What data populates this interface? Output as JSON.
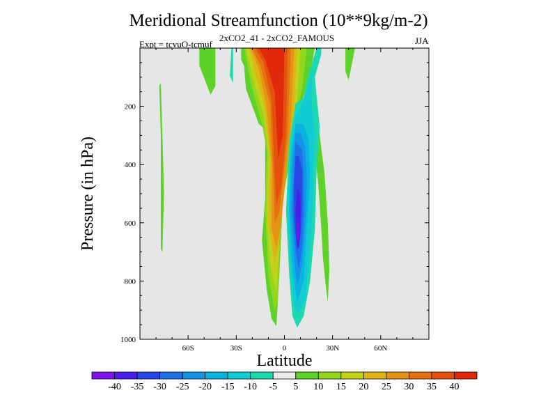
{
  "chart_data": {
    "type": "heatmap",
    "title": "Meridional Streamfunction (10**9kg/m-2)",
    "subtitle_left": "Expt = tcvuO-tcmuf",
    "subtitle_center": "2xCO2_41 - 2xCO2_FAMOUS",
    "subtitle_right": "JJA",
    "xlabel": "Latitude",
    "ylabel": "Pressure (in hPa)",
    "xlim": [
      -90,
      90
    ],
    "ylim": [
      1000,
      0
    ],
    "x_ticks": [
      {
        "value": -60,
        "label": "60S"
      },
      {
        "value": -30,
        "label": "30S"
      },
      {
        "value": 0,
        "label": "0"
      },
      {
        "value": 30,
        "label": "30N"
      },
      {
        "value": 60,
        "label": "60N"
      }
    ],
    "y_ticks": [
      200,
      400,
      600,
      800,
      1000
    ],
    "background_color": "#e6e6e6",
    "colorbar": {
      "placement": "bottom",
      "labels": [
        "-40",
        "-35",
        "-30",
        "-25",
        "-20",
        "-15",
        "-10",
        "-5",
        "5",
        "10",
        "15",
        "20",
        "25",
        "30",
        "35",
        "40"
      ],
      "colors": [
        "#7a14e8",
        "#4a1ee8",
        "#2848e6",
        "#1e70e6",
        "#1494e6",
        "#0ab4e0",
        "#12ccd4",
        "#1ed8b0",
        "#ececec",
        "#5ed228",
        "#92d61e",
        "#c2d21a",
        "#deb416",
        "#e49414",
        "#e47212",
        "#e4520e",
        "#e02a0a"
      ]
    },
    "regions": [
      {
        "level": 5,
        "points": [
          [
            -78,
            130
          ],
          [
            -77,
            300
          ],
          [
            -77,
            690
          ],
          [
            -76,
            700
          ],
          [
            -75,
            500
          ],
          [
            -76,
            300
          ],
          [
            -77,
            120
          ]
        ]
      },
      {
        "level": 5,
        "points": [
          [
            -53,
            0
          ],
          [
            -53,
            60
          ],
          [
            -46,
            160
          ],
          [
            -43,
            130
          ],
          [
            -43,
            0
          ]
        ]
      },
      {
        "level": -5,
        "points": [
          [
            -33,
            0
          ],
          [
            -34,
            95
          ],
          [
            -32,
            120
          ],
          [
            -32,
            0
          ]
        ]
      },
      {
        "level": 5,
        "points": [
          [
            -27,
            0
          ],
          [
            -27,
            40
          ],
          [
            -20,
            120
          ],
          [
            -18,
            60
          ],
          [
            -20,
            0
          ]
        ]
      },
      {
        "level": 5,
        "points": [
          [
            -26,
            0
          ],
          [
            -24,
            140
          ],
          [
            -16,
            260
          ],
          [
            -12,
            280
          ],
          [
            -12,
            520
          ],
          [
            -14,
            660
          ],
          [
            -11,
            830
          ],
          [
            -8,
            930
          ],
          [
            -5,
            955
          ],
          [
            -3,
            760
          ],
          [
            -1,
            520
          ],
          [
            8,
            240
          ],
          [
            15,
            110
          ],
          [
            19,
            0
          ]
        ]
      },
      {
        "level": 10,
        "points": [
          [
            -25,
            0
          ],
          [
            -21,
            120
          ],
          [
            -14,
            260
          ],
          [
            -11,
            350
          ],
          [
            -12,
            560
          ],
          [
            -10,
            780
          ],
          [
            -6,
            905
          ],
          [
            -4,
            860
          ],
          [
            -2,
            580
          ],
          [
            4,
            320
          ],
          [
            11,
            140
          ],
          [
            14,
            0
          ]
        ]
      },
      {
        "level": 15,
        "points": [
          [
            -24,
            0
          ],
          [
            -20,
            100
          ],
          [
            -13,
            230
          ],
          [
            -10,
            360
          ],
          [
            -11,
            580
          ],
          [
            -9,
            740
          ],
          [
            -5,
            840
          ],
          [
            -3,
            640
          ],
          [
            1,
            380
          ],
          [
            8,
            180
          ],
          [
            10,
            0
          ]
        ]
      },
      {
        "level": 20,
        "points": [
          [
            -22,
            0
          ],
          [
            -18,
            90
          ],
          [
            -12,
            210
          ],
          [
            -9,
            380
          ],
          [
            -10,
            600
          ],
          [
            -6,
            740
          ],
          [
            -3,
            660
          ],
          [
            0,
            430
          ],
          [
            6,
            210
          ],
          [
            8,
            0
          ]
        ]
      },
      {
        "level": 25,
        "points": [
          [
            -21,
            0
          ],
          [
            -16,
            70
          ],
          [
            -11,
            200
          ],
          [
            -8,
            400
          ],
          [
            -8,
            620
          ],
          [
            -5,
            690
          ],
          [
            -2,
            600
          ],
          [
            4,
            260
          ],
          [
            6,
            0
          ]
        ]
      },
      {
        "level": 30,
        "points": [
          [
            -20,
            0
          ],
          [
            -15,
            60
          ],
          [
            -9,
            190
          ],
          [
            -7,
            430
          ],
          [
            -6,
            600
          ],
          [
            -3,
            560
          ],
          [
            2,
            300
          ],
          [
            4,
            0
          ]
        ]
      },
      {
        "level": 35,
        "points": [
          [
            -18,
            0
          ],
          [
            -13,
            50
          ],
          [
            -8,
            180
          ],
          [
            -6,
            440
          ],
          [
            -5,
            540
          ],
          [
            -2,
            480
          ],
          [
            1,
            300
          ],
          [
            2,
            0
          ]
        ]
      },
      {
        "level": 40,
        "points": [
          [
            -16,
            0
          ],
          [
            -12,
            40
          ],
          [
            -6,
            150
          ],
          [
            -4,
            380
          ],
          [
            -1,
            300
          ],
          [
            0,
            0
          ]
        ]
      },
      {
        "level": 5,
        "points": [
          [
            18,
            180
          ],
          [
            18,
            320
          ],
          [
            21,
            460
          ],
          [
            23,
            620
          ],
          [
            24,
            720
          ],
          [
            26,
            830
          ],
          [
            27,
            870
          ],
          [
            28,
            760
          ],
          [
            27,
            600
          ],
          [
            25,
            430
          ],
          [
            22,
            300
          ],
          [
            20,
            200
          ]
        ]
      },
      {
        "level": 5,
        "points": [
          [
            38,
            0
          ],
          [
            38,
            80
          ],
          [
            40,
            110
          ],
          [
            44,
            0
          ]
        ]
      },
      {
        "level": -5,
        "points": [
          [
            20,
            0
          ],
          [
            15,
            90
          ],
          [
            12,
            170
          ],
          [
            7,
            190
          ],
          [
            3,
            320
          ],
          [
            1,
            560
          ],
          [
            3,
            780
          ],
          [
            5,
            920
          ],
          [
            8,
            960
          ],
          [
            12,
            920
          ],
          [
            16,
            800
          ],
          [
            19,
            620
          ],
          [
            20,
            420
          ],
          [
            22,
            270
          ],
          [
            20,
            160
          ],
          [
            19,
            100
          ],
          [
            23,
            20
          ],
          [
            23,
            0
          ]
        ]
      },
      {
        "level": -10,
        "points": [
          [
            18,
            70
          ],
          [
            12,
            180
          ],
          [
            7,
            230
          ],
          [
            4,
            330
          ],
          [
            2,
            560
          ],
          [
            4,
            770
          ],
          [
            6,
            890
          ],
          [
            9,
            910
          ],
          [
            13,
            860
          ],
          [
            15,
            760
          ],
          [
            17,
            600
          ],
          [
            18,
            420
          ],
          [
            19,
            290
          ],
          [
            17,
            190
          ],
          [
            17,
            110
          ]
        ]
      },
      {
        "level": -15,
        "points": [
          [
            7,
            260
          ],
          [
            4,
            370
          ],
          [
            3,
            560
          ],
          [
            5,
            760
          ],
          [
            8,
            870
          ],
          [
            12,
            800
          ],
          [
            14,
            620
          ],
          [
            16,
            440
          ],
          [
            15,
            310
          ],
          [
            12,
            260
          ]
        ]
      },
      {
        "level": -20,
        "points": [
          [
            7,
            290
          ],
          [
            5,
            390
          ],
          [
            4,
            560
          ],
          [
            6,
            720
          ],
          [
            8,
            820
          ],
          [
            11,
            740
          ],
          [
            13,
            600
          ],
          [
            14,
            460
          ],
          [
            13,
            340
          ],
          [
            10,
            290
          ]
        ]
      },
      {
        "level": -25,
        "points": [
          [
            7,
            320
          ],
          [
            6,
            420
          ],
          [
            5,
            560
          ],
          [
            7,
            700
          ],
          [
            9,
            760
          ],
          [
            11,
            680
          ],
          [
            12,
            560
          ],
          [
            12,
            440
          ],
          [
            11,
            350
          ]
        ]
      },
      {
        "level": -30,
        "points": [
          [
            7,
            370
          ],
          [
            6,
            460
          ],
          [
            6,
            580
          ],
          [
            8,
            700
          ],
          [
            10,
            650
          ],
          [
            11,
            540
          ],
          [
            11,
            420
          ],
          [
            9,
            370
          ]
        ]
      },
      {
        "level": -35,
        "points": [
          [
            8,
            480
          ],
          [
            7,
            560
          ],
          [
            8,
            680
          ],
          [
            9,
            690
          ],
          [
            10,
            600
          ],
          [
            10,
            500
          ]
        ]
      },
      {
        "level": -40,
        "points": [
          [
            8,
            590
          ],
          [
            8,
            650
          ],
          [
            9,
            670
          ],
          [
            9,
            610
          ]
        ]
      }
    ]
  }
}
